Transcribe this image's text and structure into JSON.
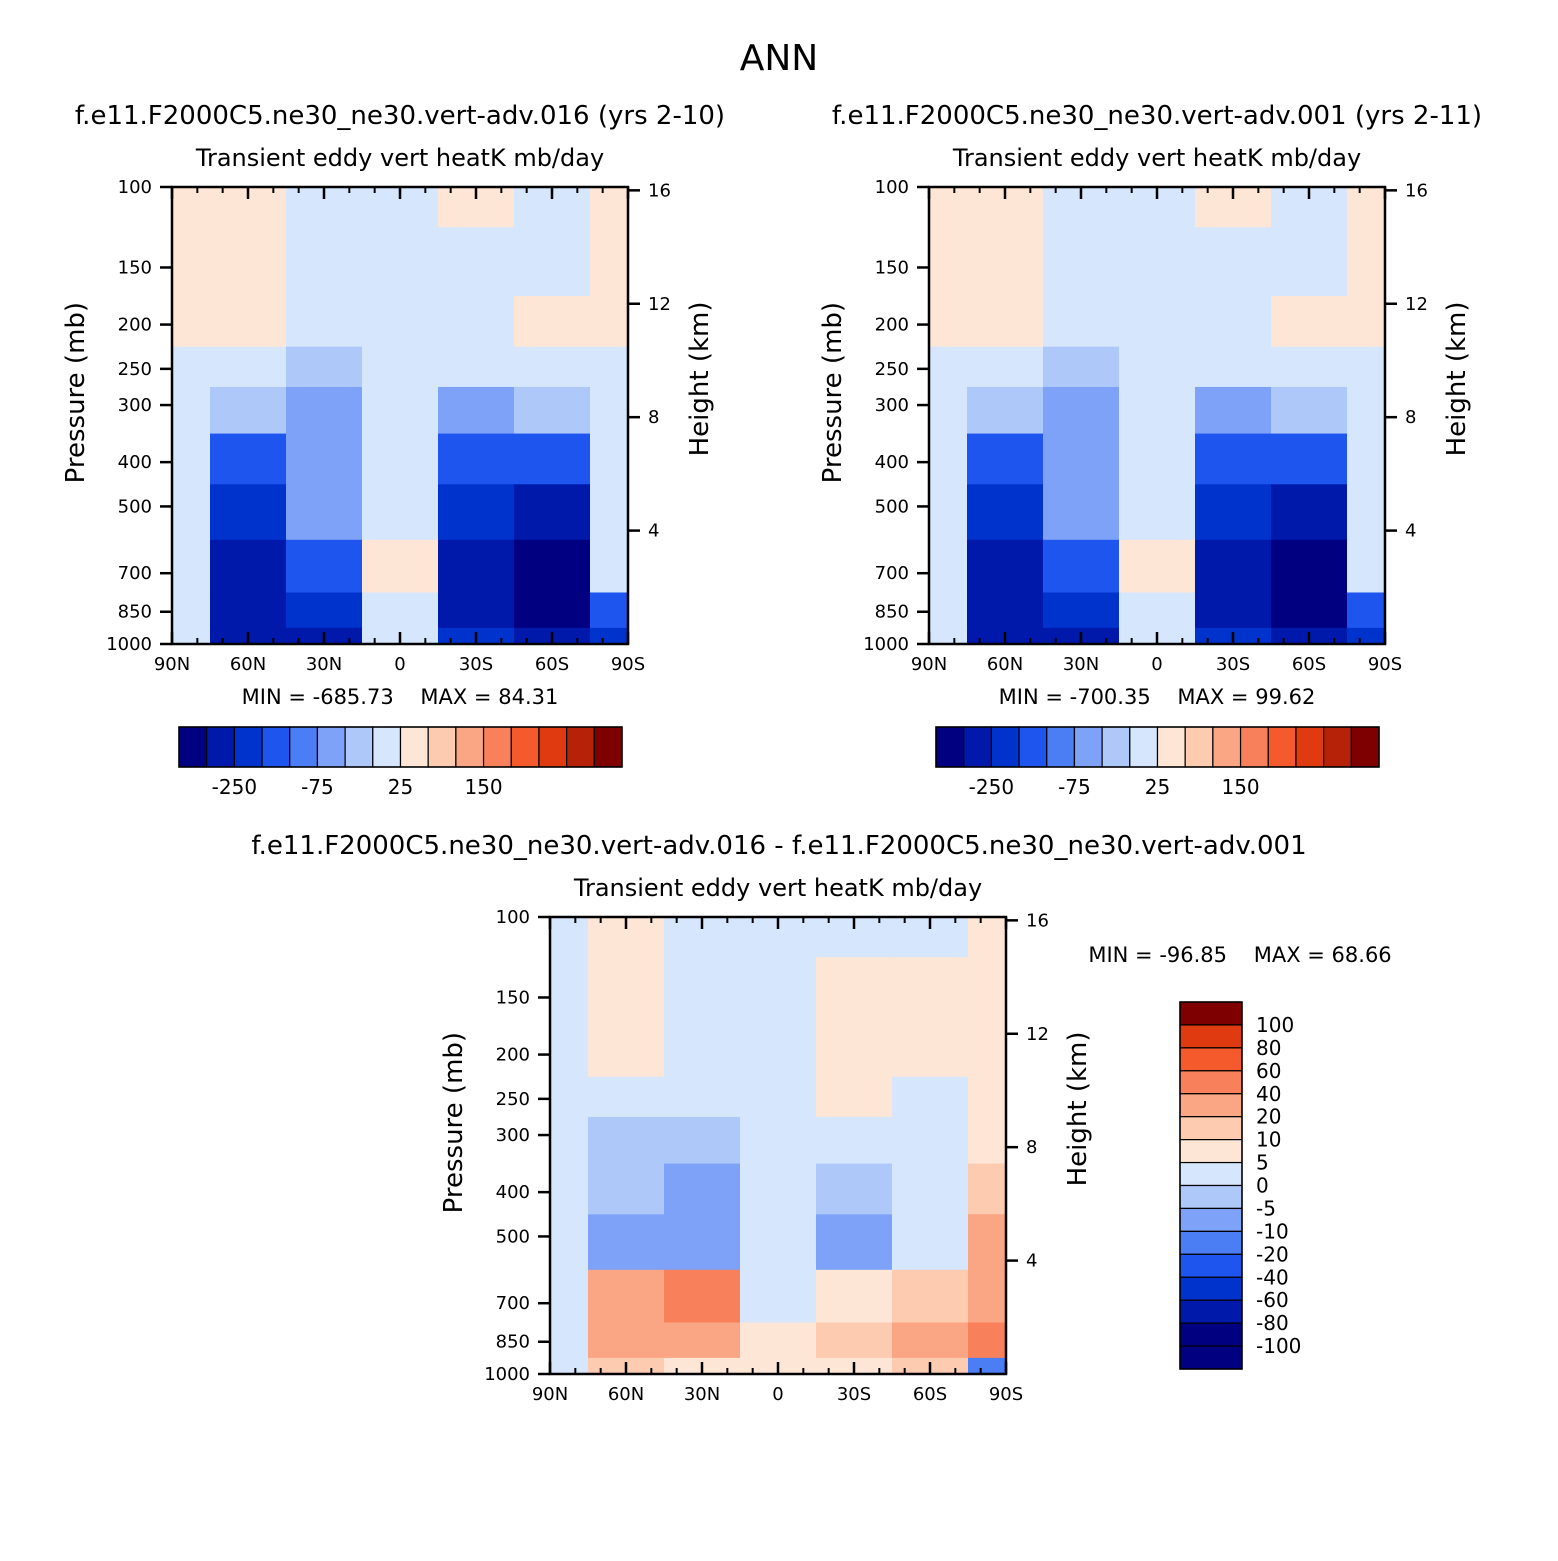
{
  "figure_title": "ANN",
  "palettes": {
    "blue_red_16": [
      "#000080",
      "#0019aa",
      "#0033cc",
      "#1e55ee",
      "#4b7ef5",
      "#7ea2f7",
      "#aec8fa",
      "#d6e6fd",
      "#fde6d5",
      "#fccbb0",
      "#faa584",
      "#f8805a",
      "#f55a2d",
      "#e03a10",
      "#b52208",
      "#7e0000"
    ],
    "diff_14": [
      "#000080",
      "#0019aa",
      "#0033cc",
      "#1e55ee",
      "#4b7ef5",
      "#7ea2f7",
      "#aec8fa",
      "#d6e6fd",
      "#fde6d5",
      "#fccbb0",
      "#faa584",
      "#f8805a",
      "#f55a2d",
      "#e03a10"
    ]
  },
  "axes_common": {
    "var_title": "Transient eddy vert heatK mb/day",
    "ylabel": "Pressure (mb)",
    "ylabel_right": "Height (km)",
    "xticks": [
      "90N",
      "60N",
      "30N",
      "0",
      "30S",
      "60S",
      "90S"
    ],
    "yticks": [
      "100",
      "150",
      "200",
      "250",
      "300",
      "400",
      "500",
      "700",
      "850",
      "1000"
    ],
    "yticks_right": [
      "16",
      "12",
      "8",
      "4"
    ]
  },
  "panels": [
    {
      "run_title": "f.e11.F2000C5.ne30_ne30.vert-adv.016 (yrs 2-10)",
      "stats": {
        "min_label": "MIN =",
        "min": "-685.73",
        "max_label": "MAX =",
        "max": "84.31"
      },
      "colorbar_ticks": [
        "-250",
        "-75",
        "25",
        "150"
      ]
    },
    {
      "run_title": "f.e11.F2000C5.ne30_ne30.vert-adv.001 (yrs 2-11)",
      "stats": {
        "min_label": "MIN =",
        "min": "-700.35",
        "max_label": "MAX =",
        "max": "99.62"
      },
      "colorbar_ticks": [
        "-250",
        "-75",
        "25",
        "150"
      ]
    },
    {
      "run_title": "f.e11.F2000C5.ne30_ne30.vert-adv.016 - f.e11.F2000C5.ne30_ne30.vert-adv.001",
      "stats": {
        "min_label": "MIN =",
        "min": "-96.85",
        "max_label": "MAX =",
        "max": "68.66"
      },
      "colorbar_ticks": [
        "100",
        "80",
        "60",
        "40",
        "20",
        "10",
        "5",
        "0",
        "-5",
        "-10",
        "-20",
        "-40",
        "-60",
        "-80",
        "-100"
      ]
    }
  ],
  "chart_data": [
    {
      "type": "heatmap",
      "title": "Transient eddy vert heatK mb/day",
      "xlabel": "",
      "ylabel": "Pressure (mb)",
      "x": [
        90,
        60,
        30,
        0,
        -30,
        -60,
        -90
      ],
      "y": [
        100,
        150,
        200,
        250,
        300,
        400,
        500,
        700,
        850,
        1000
      ],
      "ylog": true,
      "contour_levels": [
        -250,
        -200,
        -150,
        -100,
        -75,
        -50,
        -25,
        0,
        25,
        50,
        75,
        100,
        125,
        150,
        200
      ],
      "values": [
        [
          10,
          10,
          -5,
          -5,
          10,
          -10,
          5
        ],
        [
          10,
          10,
          -5,
          -5,
          -5,
          -10,
          5
        ],
        [
          10,
          10,
          -10,
          -5,
          -5,
          5,
          5
        ],
        [
          -5,
          -15,
          -35,
          -5,
          -20,
          -10,
          -5
        ],
        [
          -5,
          -40,
          -60,
          -5,
          -60,
          -40,
          -5
        ],
        [
          -15,
          -110,
          -70,
          -5,
          -150,
          -120,
          -10
        ],
        [
          -20,
          -190,
          -70,
          -5,
          -160,
          -230,
          -10
        ],
        [
          -20,
          -220,
          -110,
          10,
          -210,
          -260,
          -20
        ],
        [
          -20,
          -240,
          -200,
          -5,
          -210,
          -270,
          -120
        ],
        [
          -20,
          -230,
          -220,
          -5,
          -190,
          -250,
          -200
        ]
      ],
      "min": -685.73,
      "max": 84.31
    },
    {
      "type": "heatmap",
      "title": "Transient eddy vert heatK mb/day",
      "xlabel": "",
      "ylabel": "Pressure (mb)",
      "x": [
        90,
        60,
        30,
        0,
        -30,
        -60,
        -90
      ],
      "y": [
        100,
        150,
        200,
        250,
        300,
        400,
        500,
        700,
        850,
        1000
      ],
      "ylog": true,
      "contour_levels": [
        -250,
        -200,
        -150,
        -100,
        -75,
        -50,
        -25,
        0,
        25,
        50,
        75,
        100,
        125,
        150,
        200
      ],
      "values": [
        [
          10,
          10,
          -5,
          -5,
          10,
          -10,
          5
        ],
        [
          10,
          10,
          -5,
          -5,
          -5,
          -10,
          5
        ],
        [
          10,
          10,
          -10,
          -5,
          -5,
          5,
          5
        ],
        [
          -5,
          -15,
          -35,
          -5,
          -20,
          -10,
          -5
        ],
        [
          -5,
          -40,
          -60,
          -5,
          -60,
          -40,
          -5
        ],
        [
          -15,
          -110,
          -70,
          -5,
          -150,
          -120,
          -10
        ],
        [
          -20,
          -190,
          -70,
          -5,
          -160,
          -230,
          -10
        ],
        [
          -20,
          -220,
          -110,
          10,
          -210,
          -260,
          -20
        ],
        [
          -20,
          -240,
          -200,
          -5,
          -210,
          -270,
          -120
        ],
        [
          -20,
          -230,
          -220,
          -5,
          -190,
          -250,
          -200
        ]
      ],
      "min": -700.35,
      "max": 99.62
    },
    {
      "type": "heatmap",
      "title": "Transient eddy vert heatK mb/day",
      "xlabel": "",
      "ylabel": "Pressure (mb)",
      "x": [
        90,
        60,
        30,
        0,
        -30,
        -60,
        -90
      ],
      "y": [
        100,
        150,
        200,
        250,
        300,
        400,
        500,
        700,
        850,
        1000
      ],
      "ylog": true,
      "contour_levels": [
        -100,
        -80,
        -60,
        -40,
        -20,
        -10,
        -5,
        0,
        5,
        10,
        20,
        40,
        60,
        80,
        100
      ],
      "values": [
        [
          -2,
          2,
          -2,
          -2,
          -2,
          -2,
          2
        ],
        [
          -2,
          2,
          -2,
          -2,
          2,
          2,
          2
        ],
        [
          -2,
          2,
          -2,
          -2,
          2,
          2,
          2
        ],
        [
          -3,
          -5,
          -3,
          -2,
          2,
          -3,
          3
        ],
        [
          -3,
          -8,
          -6,
          -2,
          -3,
          -3,
          3
        ],
        [
          -5,
          -10,
          -12,
          -2,
          -8,
          -3,
          5
        ],
        [
          -5,
          -12,
          -20,
          -2,
          -15,
          -5,
          10
        ],
        [
          -3,
          10,
          20,
          -2,
          3,
          8,
          15
        ],
        [
          -3,
          15,
          10,
          2,
          8,
          15,
          25
        ],
        [
          -2,
          5,
          3,
          2,
          3,
          5,
          -30
        ]
      ],
      "min": -96.85,
      "max": 68.66
    }
  ]
}
